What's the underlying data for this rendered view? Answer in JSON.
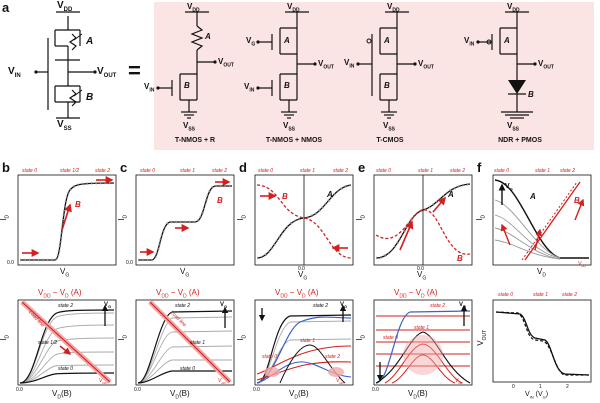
{
  "panel_letters": [
    "a",
    "b",
    "c",
    "d",
    "e",
    "f"
  ],
  "circuit_labels": {
    "vdd": "V",
    "vdd_sub": "DD",
    "vss": "V",
    "vss_sub": "SS",
    "vin": "V",
    "vin_sub": "IN",
    "vout": "V",
    "vout_sub": "OUT",
    "vg": "V",
    "vg_sub": "G",
    "a": "A",
    "b": "B",
    "equals": "="
  },
  "variant_captions": [
    "T-NMOS + R",
    "T-NMOS + NMOS",
    "T-CMOS",
    "NDR + PMOS"
  ],
  "states": [
    "state 0",
    "state 1/2",
    "state 1",
    "state 2"
  ],
  "axis": {
    "id": "I",
    "id_sub": "D",
    "vg": "V",
    "vg_sub": "G",
    "vd": "V",
    "vd_sub": "D",
    "vd_b": "V",
    "vd_b_sub": "D",
    "vd_b_paren": "(B)",
    "vdd_minus_vd": "V",
    "vdd_minus_vd_sub1": "DD",
    "vdd_minus_vd_mid": " − V",
    "vdd_minus_vd_sub2": "D",
    "vdd_minus_vd_paren": " (A)",
    "vout": "V",
    "vout_sub": "OUT",
    "vin": "V",
    "vin_sub": "IN",
    "vin_paren_open": "(V",
    "vin_paren_sub": "G",
    "vin_paren_close": ")",
    "zero": "0.0",
    "zero_d": "0.0",
    "vg_arrow": "V",
    "vg_arrow_sub": "G",
    "vdd_red": "V",
    "vdd_red_sub": "DD",
    "load_line": "Load line",
    "f_ticks": [
      "0",
      "1",
      "2"
    ]
  },
  "colors": {
    "red": "#d21f1f",
    "pink_bg": "#fbe4e4",
    "black": "#111111",
    "blue": "#3a62c8",
    "gray": "#9a9a9a"
  }
}
